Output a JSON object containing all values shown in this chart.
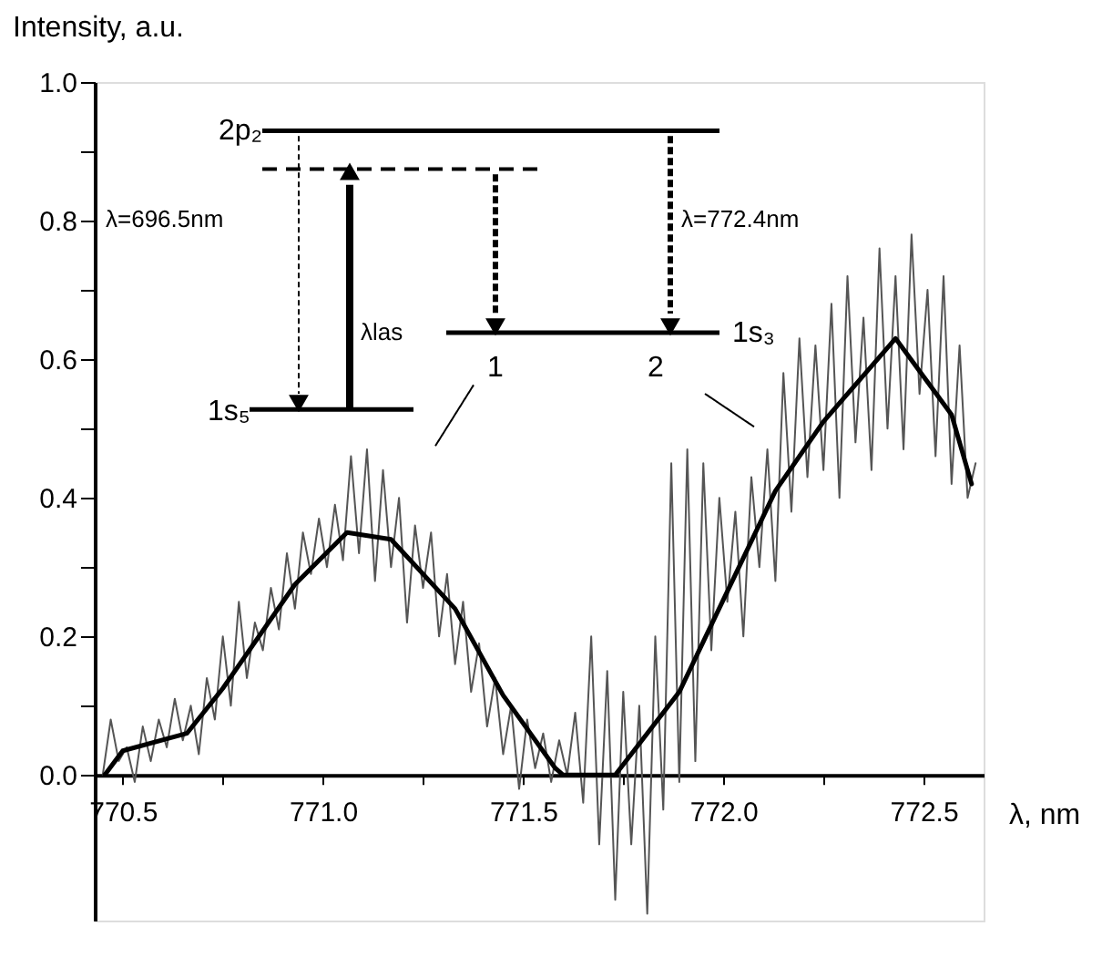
{
  "chart_data": {
    "type": "line",
    "xlabel": "λ, nm",
    "ylabel": "Intensity, a.u.",
    "xlim": [
      770.43,
      772.65
    ],
    "ylim": [
      -0.21,
      1.0
    ],
    "xticks": [
      {
        "value": 770.5,
        "label": "770.5"
      },
      {
        "value": 770.75,
        "label": null
      },
      {
        "value": 771.0,
        "label": "771.0"
      },
      {
        "value": 771.25,
        "label": null
      },
      {
        "value": 771.5,
        "label": "771.5"
      },
      {
        "value": 771.75,
        "label": null
      },
      {
        "value": 772.0,
        "label": "772.0"
      },
      {
        "value": 772.25,
        "label": null
      },
      {
        "value": 772.5,
        "label": "772.5"
      }
    ],
    "yticks": [
      {
        "value": 0,
        "label": "0.0"
      },
      {
        "value": 0.1,
        "label": null
      },
      {
        "value": 0.2,
        "label": "0.2"
      },
      {
        "value": 0.3,
        "label": null
      },
      {
        "value": 0.4,
        "label": "0.4"
      },
      {
        "value": 0.5,
        "label": null
      },
      {
        "value": 0.6,
        "label": "0.6"
      },
      {
        "value": 0.7,
        "label": null
      },
      {
        "value": 0.8,
        "label": "0.8"
      },
      {
        "value": 0.9,
        "label": null
      },
      {
        "value": 1.0,
        "label": "1.0"
      }
    ],
    "grid": false,
    "marker": "none",
    "series": [
      {
        "color": "#555555",
        "line_style": "solid",
        "x": [
          770.45,
          770.47,
          770.49,
          770.51,
          770.53,
          770.55,
          770.57,
          770.59,
          770.61,
          770.63,
          770.65,
          770.67,
          770.69,
          770.71,
          770.73,
          770.75,
          770.77,
          770.79,
          770.81,
          770.83,
          770.85,
          770.87,
          770.89,
          770.91,
          770.93,
          770.95,
          770.97,
          770.99,
          771.01,
          771.03,
          771.05,
          771.07,
          771.09,
          771.11,
          771.13,
          771.15,
          771.17,
          771.19,
          771.21,
          771.23,
          771.25,
          771.27,
          771.29,
          771.31,
          771.33,
          771.35,
          771.37,
          771.39,
          771.41,
          771.43,
          771.45,
          771.47,
          771.49,
          771.51,
          771.53,
          771.55,
          771.57,
          771.59,
          771.61,
          771.63,
          771.65,
          771.67,
          771.69,
          771.71,
          771.73,
          771.75,
          771.77,
          771.79,
          771.81,
          771.83,
          771.85,
          771.87,
          771.89,
          771.91,
          771.93,
          771.95,
          771.97,
          771.99,
          772.01,
          772.03,
          772.05,
          772.07,
          772.09,
          772.11,
          772.13,
          772.15,
          772.17,
          772.19,
          772.21,
          772.23,
          772.25,
          772.27,
          772.29,
          772.31,
          772.33,
          772.35,
          772.37,
          772.39,
          772.41,
          772.43,
          772.45,
          772.47,
          772.49,
          772.51,
          772.53,
          772.55,
          772.57,
          772.59,
          772.61,
          772.63
        ],
        "values": [
          0.0,
          0.08,
          0.02,
          0.04,
          -0.01,
          0.07,
          0.02,
          0.08,
          0.04,
          0.11,
          0.05,
          0.1,
          0.03,
          0.14,
          0.08,
          0.2,
          0.1,
          0.25,
          0.14,
          0.22,
          0.18,
          0.27,
          0.21,
          0.32,
          0.24,
          0.35,
          0.29,
          0.37,
          0.3,
          0.39,
          0.31,
          0.46,
          0.32,
          0.47,
          0.28,
          0.44,
          0.3,
          0.4,
          0.22,
          0.36,
          0.27,
          0.35,
          0.2,
          0.29,
          0.16,
          0.25,
          0.12,
          0.19,
          0.07,
          0.14,
          0.03,
          0.1,
          -0.02,
          0.08,
          0.01,
          0.06,
          -0.01,
          0.05,
          0.0,
          0.09,
          -0.04,
          0.2,
          -0.1,
          0.15,
          -0.18,
          0.12,
          -0.1,
          0.1,
          -0.2,
          0.2,
          -0.05,
          0.45,
          -0.01,
          0.47,
          0.02,
          0.45,
          0.18,
          0.4,
          0.25,
          0.38,
          0.2,
          0.43,
          0.3,
          0.47,
          0.28,
          0.58,
          0.38,
          0.63,
          0.43,
          0.62,
          0.44,
          0.68,
          0.4,
          0.72,
          0.48,
          0.66,
          0.44,
          0.76,
          0.5,
          0.72,
          0.47,
          0.78,
          0.55,
          0.7,
          0.46,
          0.72,
          0.42,
          0.62,
          0.4,
          0.45
        ]
      },
      {
        "color": "#000000",
        "line_style": "solid",
        "x": [
          770.455,
          770.5,
          770.66,
          770.75,
          770.93,
          771.06,
          771.17,
          771.33,
          771.45,
          771.58,
          771.6,
          771.73,
          771.89,
          772.13,
          772.25,
          772.43,
          772.57,
          772.62
        ],
        "values": [
          0.0,
          0.035,
          0.06,
          0.125,
          0.275,
          0.35,
          0.34,
          0.24,
          0.115,
          0.01,
          0.0,
          0.0,
          0.12,
          0.41,
          0.51,
          0.63,
          0.52,
          0.42
        ]
      }
    ],
    "annotations": [
      "2p₂",
      "1s₅",
      "1s₃",
      "λ=696.5nm",
      "λ=772.4nm",
      "λlas",
      "1",
      "2"
    ]
  }
}
